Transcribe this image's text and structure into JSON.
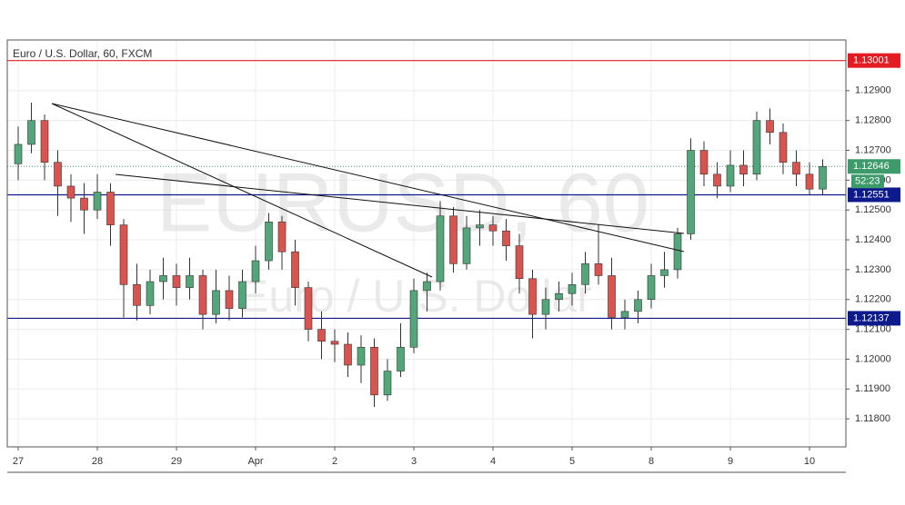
{
  "chart_data": {
    "type": "candlestick",
    "title": "Euro / U.S. Dollar, 60, FXCM",
    "watermark": "EURUSD, 60",
    "watermark_subtitle": "Euro / U.S. Dollar",
    "categories": [
      "27",
      null,
      null,
      null,
      null,
      null,
      "28",
      null,
      null,
      null,
      null,
      null,
      "29",
      null,
      null,
      null,
      null,
      null,
      "Apr",
      null,
      null,
      null,
      null,
      null,
      "2",
      null,
      null,
      null,
      null,
      null,
      "3",
      null,
      null,
      null,
      null,
      null,
      "4",
      null,
      null,
      null,
      null,
      null,
      "5",
      null,
      null,
      null,
      null,
      null,
      "8",
      null,
      null,
      null,
      null,
      null,
      "9",
      null,
      null,
      null,
      null,
      null,
      "10",
      null
    ],
    "open": [
      1.12655,
      1.1272,
      1.128,
      1.1266,
      1.1258,
      1.1254,
      1.125,
      1.1256,
      1.1245,
      1.1225,
      1.1218,
      1.1226,
      1.1228,
      1.1224,
      1.1228,
      1.1215,
      1.1223,
      1.1217,
      1.1226,
      1.1233,
      1.1246,
      1.1236,
      1.1224,
      1.121,
      1.1206,
      1.1205,
      1.1198,
      1.1204,
      1.1188,
      1.1196,
      1.1204,
      1.1223,
      1.1226,
      1.1248,
      1.1232,
      1.1244,
      1.1245,
      1.1243,
      1.1238,
      1.1227,
      1.1215,
      1.122,
      1.1222,
      1.1225,
      1.1232,
      1.1228,
      1.1214,
      1.1216,
      1.122,
      1.1228,
      1.123,
      1.1242,
      1.127,
      1.1262,
      1.1258,
      1.1265,
      1.1262,
      1.128,
      1.1276,
      1.1266,
      1.1262,
      1.1257
    ],
    "high": [
      1.1278,
      1.1286,
      1.1282,
      1.127,
      1.1262,
      1.1259,
      1.1262,
      1.1259,
      1.1247,
      1.1232,
      1.123,
      1.1234,
      1.1232,
      1.1234,
      1.123,
      1.123,
      1.1228,
      1.123,
      1.1238,
      1.1249,
      1.1248,
      1.124,
      1.1226,
      1.1216,
      1.121,
      1.1209,
      1.1208,
      1.1207,
      1.12,
      1.1212,
      1.1227,
      1.1229,
      1.1253,
      1.1251,
      1.1248,
      1.125,
      1.1248,
      1.1247,
      1.1242,
      1.123,
      1.1224,
      1.1226,
      1.1229,
      1.1236,
      1.1245,
      1.1234,
      1.122,
      1.1223,
      1.1232,
      1.1236,
      1.1244,
      1.1274,
      1.1273,
      1.1266,
      1.127,
      1.127,
      1.1283,
      1.1284,
      1.1279,
      1.127,
      1.1266,
      1.1267
    ],
    "low": [
      1.126,
      1.1269,
      1.126,
      1.1248,
      1.1246,
      1.1242,
      1.1247,
      1.1238,
      1.1214,
      1.1213,
      1.1215,
      1.122,
      1.1218,
      1.122,
      1.121,
      1.1212,
      1.1213,
      1.1214,
      1.1222,
      1.123,
      1.123,
      1.1218,
      1.1206,
      1.12,
      1.1199,
      1.1194,
      1.1192,
      1.1184,
      1.1186,
      1.1194,
      1.1202,
      1.1216,
      1.1223,
      1.1229,
      1.123,
      1.1238,
      1.1238,
      1.1233,
      1.1222,
      1.1207,
      1.121,
      1.1216,
      1.1218,
      1.1222,
      1.1225,
      1.121,
      1.121,
      1.1212,
      1.1217,
      1.1224,
      1.1227,
      1.124,
      1.1258,
      1.1254,
      1.1256,
      1.1258,
      1.126,
      1.1272,
      1.1262,
      1.1258,
      1.1255,
      1.1255
    ],
    "close": [
      1.1272,
      1.128,
      1.1266,
      1.1258,
      1.1254,
      1.125,
      1.1256,
      1.1245,
      1.1225,
      1.1218,
      1.1226,
      1.1228,
      1.1224,
      1.1228,
      1.1215,
      1.1223,
      1.1217,
      1.1226,
      1.1233,
      1.1246,
      1.1236,
      1.1224,
      1.121,
      1.1206,
      1.1205,
      1.1198,
      1.1204,
      1.1188,
      1.1196,
      1.1204,
      1.1223,
      1.1226,
      1.1248,
      1.1232,
      1.1244,
      1.1245,
      1.1243,
      1.1238,
      1.1227,
      1.1215,
      1.122,
      1.1222,
      1.1225,
      1.1232,
      1.1228,
      1.1214,
      1.1216,
      1.122,
      1.1228,
      1.123,
      1.1242,
      1.127,
      1.1262,
      1.1258,
      1.1265,
      1.1262,
      1.128,
      1.1276,
      1.1266,
      1.1262,
      1.1257,
      1.12646
    ],
    "up_color": "#53a67a",
    "down_color": "#d9534f",
    "levels": [
      {
        "value": 1.13001,
        "color": "#e31b23"
      },
      {
        "value": 1.12551,
        "color": "#0d1a8c"
      },
      {
        "value": 1.12137,
        "color": "#0d1a8c"
      }
    ],
    "countdown": "52:23",
    "last_color": "#3d9a6a",
    "ylim": [
      1.11706,
      1.1307
    ],
    "yticks": [
      {
        "value": 1.118,
        "label": "1.11800"
      },
      {
        "value": 1.119,
        "label": "1.11900"
      },
      {
        "value": 1.12,
        "label": "1.12000"
      },
      {
        "value": 1.121,
        "label": "1.12100"
      },
      {
        "value": 1.122,
        "label": "1.12200"
      },
      {
        "value": 1.123,
        "label": "1.12300"
      },
      {
        "value": 1.124,
        "label": "1.12400"
      },
      {
        "value": 1.125,
        "label": "1.12500"
      },
      {
        "value": 1.126,
        "label": "1.12600"
      },
      {
        "value": 1.127,
        "label": "1.12700"
      },
      {
        "value": 1.128,
        "label": "1.12800"
      },
      {
        "value": 1.129,
        "label": "1.12900"
      }
    ],
    "grid": true
  }
}
